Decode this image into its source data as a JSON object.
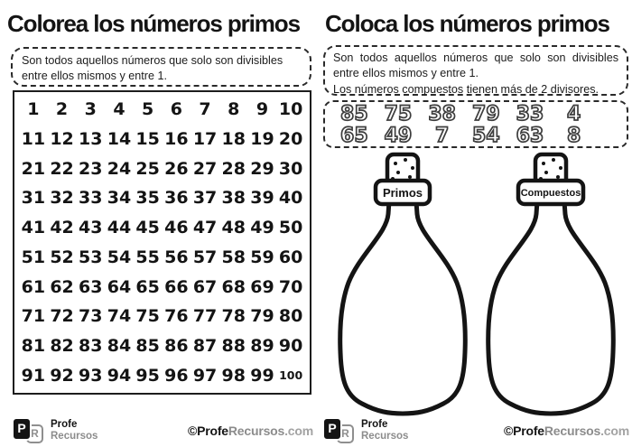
{
  "left": {
    "title": "Colorea los números primos",
    "instruction": "Son todos aquellos números que solo son divisibles entre ellos mismos y entre 1.",
    "grid_numbers": [
      1,
      2,
      3,
      4,
      5,
      6,
      7,
      8,
      9,
      10,
      11,
      12,
      13,
      14,
      15,
      16,
      17,
      18,
      19,
      20,
      21,
      22,
      23,
      24,
      25,
      26,
      27,
      28,
      29,
      30,
      31,
      32,
      33,
      34,
      35,
      36,
      37,
      38,
      39,
      40,
      41,
      42,
      43,
      44,
      45,
      46,
      47,
      48,
      49,
      50,
      51,
      52,
      53,
      54,
      55,
      56,
      57,
      58,
      59,
      60,
      61,
      62,
      63,
      64,
      65,
      66,
      67,
      68,
      69,
      70,
      71,
      72,
      73,
      74,
      75,
      76,
      77,
      78,
      79,
      80,
      81,
      82,
      83,
      84,
      85,
      86,
      87,
      88,
      89,
      90,
      91,
      92,
      93,
      94,
      95,
      96,
      97,
      98,
      99,
      100
    ]
  },
  "right": {
    "title": "Coloca los números primos",
    "instruction_line1": "Son todos aquellos números que solo son divisibles entre ellos mismos y entre 1.",
    "instruction_line2": "Los números compuestos tienen más de 2 divisores.",
    "number_tiles": [
      [
        "85",
        "75",
        "38",
        "79",
        "33",
        "4"
      ],
      [
        "65",
        "49",
        "7",
        "54",
        "63",
        "8"
      ]
    ],
    "bottles": [
      {
        "label": "Primos"
      },
      {
        "label": "Compuestos"
      }
    ]
  },
  "footer": {
    "logo_p": "P",
    "logo_r": "R",
    "brand_line1": "Profe",
    "brand_line2": "Recursos",
    "copyright_black": "©Profe",
    "copyright_gray": "Recursos",
    "copyright_domain": ".com"
  },
  "colors": {
    "ink": "#141414",
    "gray": "#8c8c8c",
    "paper": "#ffffff"
  }
}
